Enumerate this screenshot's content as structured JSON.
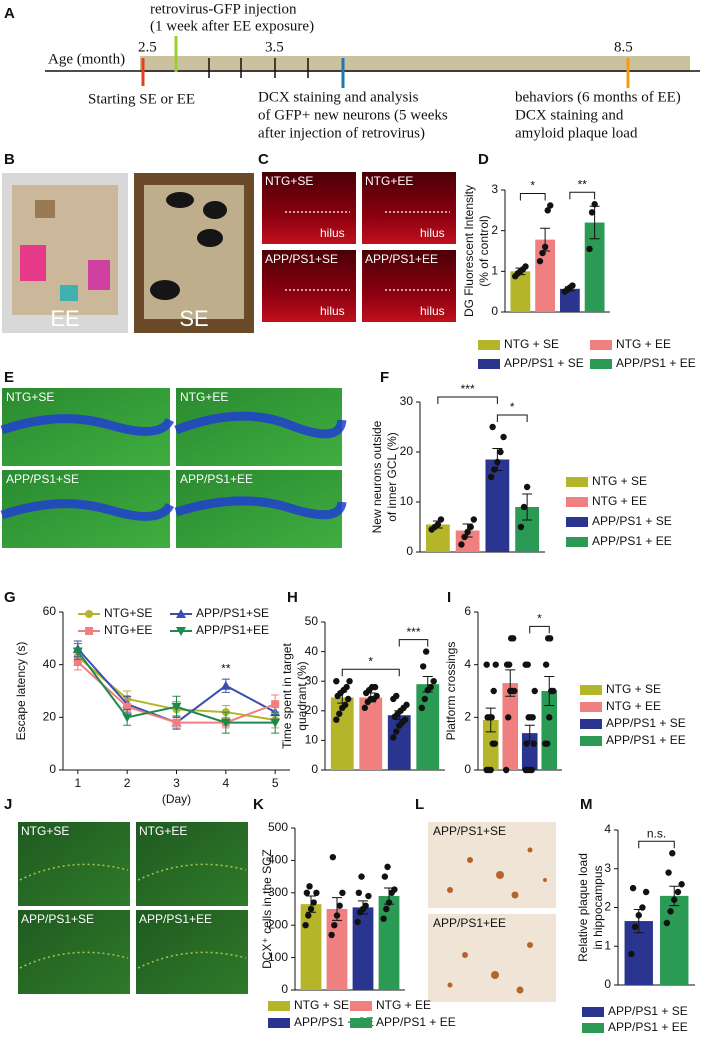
{
  "timeline": {
    "panel": "A",
    "axis_label": "Age (month)",
    "marks": [
      "2.5",
      "3.5",
      "8.5"
    ],
    "injection": [
      "retrovirus-GFP injection",
      "(1 week after EE exposure)"
    ],
    "start": "Starting SE or EE",
    "analysis": [
      "DCX staining and analysis",
      "of GFP+ new neurons (5 weeks",
      "after injection of retrovirus)"
    ],
    "behavior": [
      "behaviors (6 months of EE)",
      "DCX staining and",
      "amyloid plaque load"
    ]
  },
  "cages": {
    "panel": "B",
    "labels": [
      "EE",
      "SE"
    ]
  },
  "dcx_images": {
    "panel": "C",
    "labels": [
      "NTG+SE",
      "NTG+EE",
      "APP/PS1+SE",
      "APP/PS1+EE"
    ],
    "region": "hilus"
  },
  "gfp_images": {
    "panel": "E",
    "labels": [
      "NTG+SE",
      "NTG+EE",
      "APP/PS1+SE",
      "APP/PS1+EE"
    ]
  },
  "sgz_images": {
    "panel": "J",
    "labels": [
      "NTG+SE",
      "NTG+EE",
      "APP/PS1+SE",
      "APP/PS1+EE"
    ]
  },
  "plaque_images": {
    "panel": "L",
    "labels": [
      "APP/PS1+SE",
      "APP/PS1+EE"
    ]
  },
  "chart_data": [
    {
      "type": "bar",
      "panel": "D",
      "ylabel": [
        "DG Fluorescent Intensity",
        "(% of control)"
      ],
      "categories": [
        "NTG + SE",
        "NTG + EE",
        "APP/PS1 + SE",
        "APP/PS1 + EE"
      ],
      "colors": [
        "#b5b52a",
        "#f08080",
        "#2a3590",
        "#2a9a55"
      ],
      "values": [
        1.0,
        1.78,
        0.57,
        2.2
      ],
      "errors": [
        0.08,
        0.28,
        0.05,
        0.4
      ],
      "points": [
        [
          0.88,
          0.95,
          1.0,
          1.05,
          1.12
        ],
        [
          1.25,
          1.45,
          1.6,
          2.5,
          2.62
        ],
        [
          0.5,
          0.55,
          0.6,
          0.65
        ],
        [
          1.55,
          2.45,
          2.65
        ]
      ],
      "significance": [
        {
          "from": 0,
          "to": 1,
          "label": "*"
        },
        {
          "from": 2,
          "to": 3,
          "label": "**"
        }
      ],
      "ylim": [
        0,
        3
      ],
      "yticks": [
        0,
        1,
        2,
        3
      ]
    },
    {
      "type": "bar",
      "panel": "F",
      "ylabel": [
        "New neurons outside",
        "of inner GCL (%)"
      ],
      "categories": [
        "NTG + SE",
        "NTG + EE",
        "APP/PS1 + SE",
        "APP/PS1 + EE"
      ],
      "colors": [
        "#b5b52a",
        "#f08080",
        "#2a3590",
        "#2a9a55"
      ],
      "values": [
        5.5,
        4.3,
        18.5,
        9.0
      ],
      "errors": [
        0.7,
        1.3,
        2.2,
        2.6
      ],
      "points": [
        [
          4.5,
          5,
          5.5,
          6.5
        ],
        [
          1.5,
          3,
          4,
          5,
          6.5
        ],
        [
          15,
          16.5,
          18,
          20,
          23,
          25
        ],
        [
          5,
          9,
          13
        ]
      ],
      "significance": [
        {
          "from": 2,
          "to": 3,
          "label": "*"
        },
        {
          "from": 0,
          "to": 2,
          "label": "***"
        }
      ],
      "ylim": [
        0,
        30
      ],
      "yticks": [
        0,
        10,
        20,
        30
      ]
    },
    {
      "type": "line",
      "panel": "G",
      "ylabel": [
        "Escape latency (s)"
      ],
      "xlabel": "(Day)",
      "x": [
        1,
        2,
        3,
        4,
        5
      ],
      "xlim": [
        0.7,
        5.3
      ],
      "xticks": [
        1,
        2,
        3,
        4,
        5
      ],
      "series": [
        {
          "name": "NTG+SE",
          "color": "#b5b52a",
          "marker": "o",
          "values": [
            43,
            27,
            23,
            22,
            19
          ],
          "errors": [
            3,
            3,
            3,
            2.5,
            3
          ]
        },
        {
          "name": "APP/PS1+SE",
          "color": "#3a4fb0",
          "marker": "^",
          "values": [
            46,
            25,
            18,
            32,
            22
          ],
          "errors": [
            3,
            3,
            2.5,
            2.5,
            3
          ]
        },
        {
          "name": "NTG+EE",
          "color": "#f08080",
          "marker": "s",
          "values": [
            41,
            24,
            18,
            18,
            25
          ],
          "errors": [
            3,
            3,
            2,
            2,
            3.5
          ]
        },
        {
          "name": "APP/PS1+EE",
          "color": "#1e8a4a",
          "marker": "v",
          "values": [
            45,
            20,
            24,
            18,
            18
          ],
          "errors": [
            3,
            3,
            4,
            4,
            4
          ]
        }
      ],
      "annotations": [
        {
          "x": 4,
          "text": "**"
        }
      ],
      "ylim": [
        0,
        60
      ],
      "yticks": [
        0,
        20,
        40,
        60
      ]
    },
    {
      "type": "bar",
      "panel": "H",
      "ylabel": [
        "Time spent in target",
        "quadrant (%)"
      ],
      "colors": [
        "#b5b52a",
        "#f08080",
        "#2a3590",
        "#2a9a55"
      ],
      "values": [
        24.5,
        24.5,
        18.5,
        29
      ],
      "errors": [
        1.9,
        1.5,
        1.5,
        2.6
      ],
      "points": [
        [
          17,
          19,
          21,
          22,
          24,
          25,
          26,
          27,
          28,
          30,
          30
        ],
        [
          21,
          23,
          24,
          24,
          25,
          26,
          27,
          28,
          28
        ],
        [
          11,
          13,
          15,
          16,
          17,
          18,
          19,
          20,
          21,
          22,
          24,
          25
        ],
        [
          21,
          24,
          27,
          28,
          30,
          35,
          40
        ]
      ],
      "significance": [
        {
          "from": 0,
          "to": 2,
          "label": "*"
        },
        {
          "from": 2,
          "to": 3,
          "label": "***"
        }
      ],
      "ylim": [
        0,
        50
      ],
      "yticks": [
        0,
        10,
        20,
        30,
        40,
        50
      ]
    },
    {
      "type": "bar",
      "panel": "I",
      "ylabel": [
        "Platform crossings"
      ],
      "categories": [
        "NTG + SE",
        "NTG + EE",
        "APP/PS1 + SE",
        "APP/PS1 + EE"
      ],
      "colors": [
        "#b5b52a",
        "#f08080",
        "#2a3590",
        "#2a9a55"
      ],
      "values": [
        1.9,
        3.3,
        1.4,
        3.0
      ],
      "errors": [
        0.45,
        0.5,
        0.3,
        0.55
      ],
      "points": [
        [
          0,
          0,
          0,
          1,
          1,
          2,
          2,
          2,
          3,
          4,
          4
        ],
        [
          0,
          2,
          3,
          3,
          3,
          4,
          4,
          5,
          5
        ],
        [
          0,
          0,
          0,
          0,
          1,
          1,
          2,
          2,
          2,
          3,
          4,
          4
        ],
        [
          1,
          1,
          2,
          3,
          3,
          4,
          5,
          5
        ]
      ],
      "significance": [
        {
          "from": 2,
          "to": 3,
          "label": "*"
        }
      ],
      "ylim": [
        0,
        6
      ],
      "yticks": [
        0,
        2,
        4,
        6
      ]
    },
    {
      "type": "bar",
      "panel": "K",
      "ylabel": [
        "DCX⁺ cells in the SGZ"
      ],
      "categories": [
        "NTG + SE",
        "NTG + EE",
        "APP/PS1 + SE",
        "APP/PS1 + EE"
      ],
      "colors": [
        "#b5b52a",
        "#f08080",
        "#2a3590",
        "#2a9a55"
      ],
      "values": [
        265,
        250,
        255,
        290
      ],
      "errors": [
        25,
        35,
        20,
        25
      ],
      "points": [
        [
          200,
          230,
          250,
          270,
          300,
          300,
          320
        ],
        [
          170,
          200,
          230,
          260,
          300,
          410
        ],
        [
          210,
          240,
          250,
          260,
          290,
          300,
          350
        ],
        [
          220,
          250,
          270,
          300,
          310,
          350,
          380
        ]
      ],
      "ylim": [
        0,
        500
      ],
      "yticks": [
        0,
        100,
        200,
        300,
        400,
        500
      ]
    },
    {
      "type": "bar",
      "panel": "M",
      "ylabel": [
        "Relative plaque load",
        "in hippocampus"
      ],
      "categories": [
        "APP/PS1 + SE",
        "APP/PS1 + EE"
      ],
      "colors": [
        "#2a3590",
        "#2a9a55"
      ],
      "values": [
        1.65,
        2.3
      ],
      "errors": [
        0.3,
        0.25
      ],
      "points": [
        [
          0.8,
          1.5,
          1.8,
          2.0,
          2.4,
          2.5
        ],
        [
          1.6,
          1.9,
          2.2,
          2.4,
          2.6,
          2.9,
          3.4
        ]
      ],
      "significance": [
        {
          "from": 0,
          "to": 1,
          "label": "n.s."
        }
      ],
      "ylim": [
        0,
        4
      ],
      "yticks": [
        0,
        1,
        2,
        3,
        4
      ]
    }
  ]
}
